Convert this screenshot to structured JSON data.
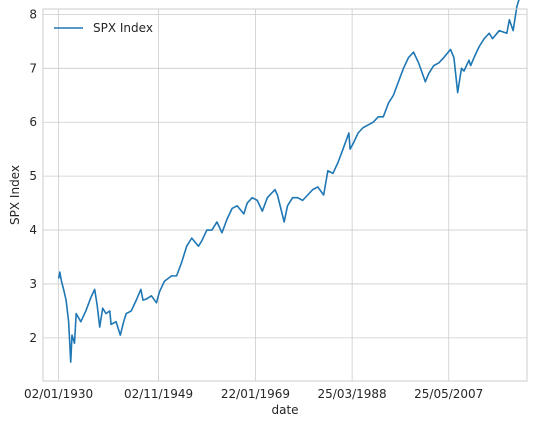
{
  "chart_data": {
    "type": "line",
    "title": "",
    "xlabel": "date",
    "ylabel": "SPX Index",
    "x_scale": "date",
    "xlim": [
      "1926-12-01",
      "2022-12-01"
    ],
    "ylim": [
      1.2,
      8.1
    ],
    "grid": true,
    "legend": {
      "placement": "top-left"
    },
    "x_ticks": [
      {
        "date": "1930-01-02",
        "label": "02/01/1930"
      },
      {
        "date": "1949-11-02",
        "label": "02/11/1949"
      },
      {
        "date": "1969-01-22",
        "label": "22/01/1969"
      },
      {
        "date": "1988-03-25",
        "label": "25/03/1988"
      },
      {
        "date": "2007-05-25",
        "label": "25/05/2007"
      }
    ],
    "y_ticks": [
      2,
      3,
      4,
      5,
      6,
      7,
      8
    ],
    "series": [
      {
        "name": "SPX Index",
        "color": "#1f77b4",
        "points": [
          [
            "1930-01-02",
            3.1
          ],
          [
            "1930-04-01",
            3.22
          ],
          [
            "1930-08-01",
            3.05
          ],
          [
            "1931-01-01",
            2.9
          ],
          [
            "1931-07-01",
            2.7
          ],
          [
            "1932-01-01",
            2.3
          ],
          [
            "1932-06-01",
            1.55
          ],
          [
            "1932-09-01",
            2.05
          ],
          [
            "1933-03-01",
            1.9
          ],
          [
            "1933-07-01",
            2.45
          ],
          [
            "1934-06-01",
            2.3
          ],
          [
            "1935-06-01",
            2.5
          ],
          [
            "1936-06-01",
            2.75
          ],
          [
            "1937-03-01",
            2.9
          ],
          [
            "1937-09-01",
            2.6
          ],
          [
            "1938-03-01",
            2.2
          ],
          [
            "1938-10-01",
            2.55
          ],
          [
            "1939-06-01",
            2.45
          ],
          [
            "1940-03-01",
            2.5
          ],
          [
            "1940-06-01",
            2.25
          ],
          [
            "1941-06-01",
            2.3
          ],
          [
            "1942-04-01",
            2.05
          ],
          [
            "1942-12-01",
            2.3
          ],
          [
            "1943-06-01",
            2.45
          ],
          [
            "1944-06-01",
            2.5
          ],
          [
            "1945-06-01",
            2.7
          ],
          [
            "1946-05-01",
            2.9
          ],
          [
            "1946-10-01",
            2.7
          ],
          [
            "1947-06-01",
            2.72
          ],
          [
            "1948-06-01",
            2.78
          ],
          [
            "1949-06-01",
            2.65
          ],
          [
            "1950-01-01",
            2.85
          ],
          [
            "1951-01-01",
            3.05
          ],
          [
            "1952-06-01",
            3.15
          ],
          [
            "1953-06-01",
            3.15
          ],
          [
            "1954-06-01",
            3.4
          ],
          [
            "1955-06-01",
            3.7
          ],
          [
            "1956-06-01",
            3.85
          ],
          [
            "1957-10-01",
            3.7
          ],
          [
            "1958-06-01",
            3.8
          ],
          [
            "1959-06-01",
            4.0
          ],
          [
            "1960-06-01",
            4.0
          ],
          [
            "1961-06-01",
            4.15
          ],
          [
            "1962-06-01",
            3.95
          ],
          [
            "1963-06-01",
            4.2
          ],
          [
            "1964-06-01",
            4.4
          ],
          [
            "1965-06-01",
            4.45
          ],
          [
            "1966-10-01",
            4.3
          ],
          [
            "1967-06-01",
            4.5
          ],
          [
            "1968-06-01",
            4.6
          ],
          [
            "1969-06-01",
            4.55
          ],
          [
            "1970-06-01",
            4.35
          ],
          [
            "1971-06-01",
            4.6
          ],
          [
            "1972-12-01",
            4.75
          ],
          [
            "1973-06-01",
            4.65
          ],
          [
            "1974-10-01",
            4.15
          ],
          [
            "1975-06-01",
            4.45
          ],
          [
            "1976-06-01",
            4.6
          ],
          [
            "1977-06-01",
            4.6
          ],
          [
            "1978-06-01",
            4.55
          ],
          [
            "1979-06-01",
            4.65
          ],
          [
            "1980-06-01",
            4.75
          ],
          [
            "1981-06-01",
            4.8
          ],
          [
            "1982-08-01",
            4.65
          ],
          [
            "1983-06-01",
            5.1
          ],
          [
            "1984-06-01",
            5.05
          ],
          [
            "1985-06-01",
            5.25
          ],
          [
            "1986-06-01",
            5.5
          ],
          [
            "1987-08-01",
            5.8
          ],
          [
            "1987-11-01",
            5.5
          ],
          [
            "1988-06-01",
            5.6
          ],
          [
            "1989-06-01",
            5.8
          ],
          [
            "1990-06-01",
            5.9
          ],
          [
            "1991-06-01",
            5.95
          ],
          [
            "1992-06-01",
            6.0
          ],
          [
            "1993-06-01",
            6.1
          ],
          [
            "1994-06-01",
            6.1
          ],
          [
            "1995-06-01",
            6.35
          ],
          [
            "1996-06-01",
            6.5
          ],
          [
            "1997-06-01",
            6.75
          ],
          [
            "1998-06-01",
            7.0
          ],
          [
            "1999-06-01",
            7.2
          ],
          [
            "2000-06-01",
            7.3
          ],
          [
            "2001-06-01",
            7.1
          ],
          [
            "2002-10-01",
            6.75
          ],
          [
            "2003-06-01",
            6.9
          ],
          [
            "2004-06-01",
            7.05
          ],
          [
            "2005-06-01",
            7.1
          ],
          [
            "2006-06-01",
            7.2
          ],
          [
            "2007-10-01",
            7.35
          ],
          [
            "2008-06-01",
            7.2
          ],
          [
            "2009-03-01",
            6.55
          ],
          [
            "2009-12-01",
            7.0
          ],
          [
            "2010-06-01",
            6.95
          ],
          [
            "2011-06-01",
            7.15
          ],
          [
            "2011-10-01",
            7.05
          ],
          [
            "2012-06-01",
            7.2
          ],
          [
            "2013-06-01",
            7.4
          ],
          [
            "2014-06-01",
            7.55
          ],
          [
            "2015-06-01",
            7.65
          ],
          [
            "2016-02-01",
            7.55
          ],
          [
            "2017-06-01",
            7.7
          ],
          [
            "2018-12-01",
            7.65
          ],
          [
            "2019-06-01",
            7.9
          ],
          [
            "2020-03-01",
            7.7
          ],
          [
            "2020-12-01",
            8.15
          ],
          [
            "2021-12-01",
            8.45
          ]
        ]
      }
    ]
  }
}
